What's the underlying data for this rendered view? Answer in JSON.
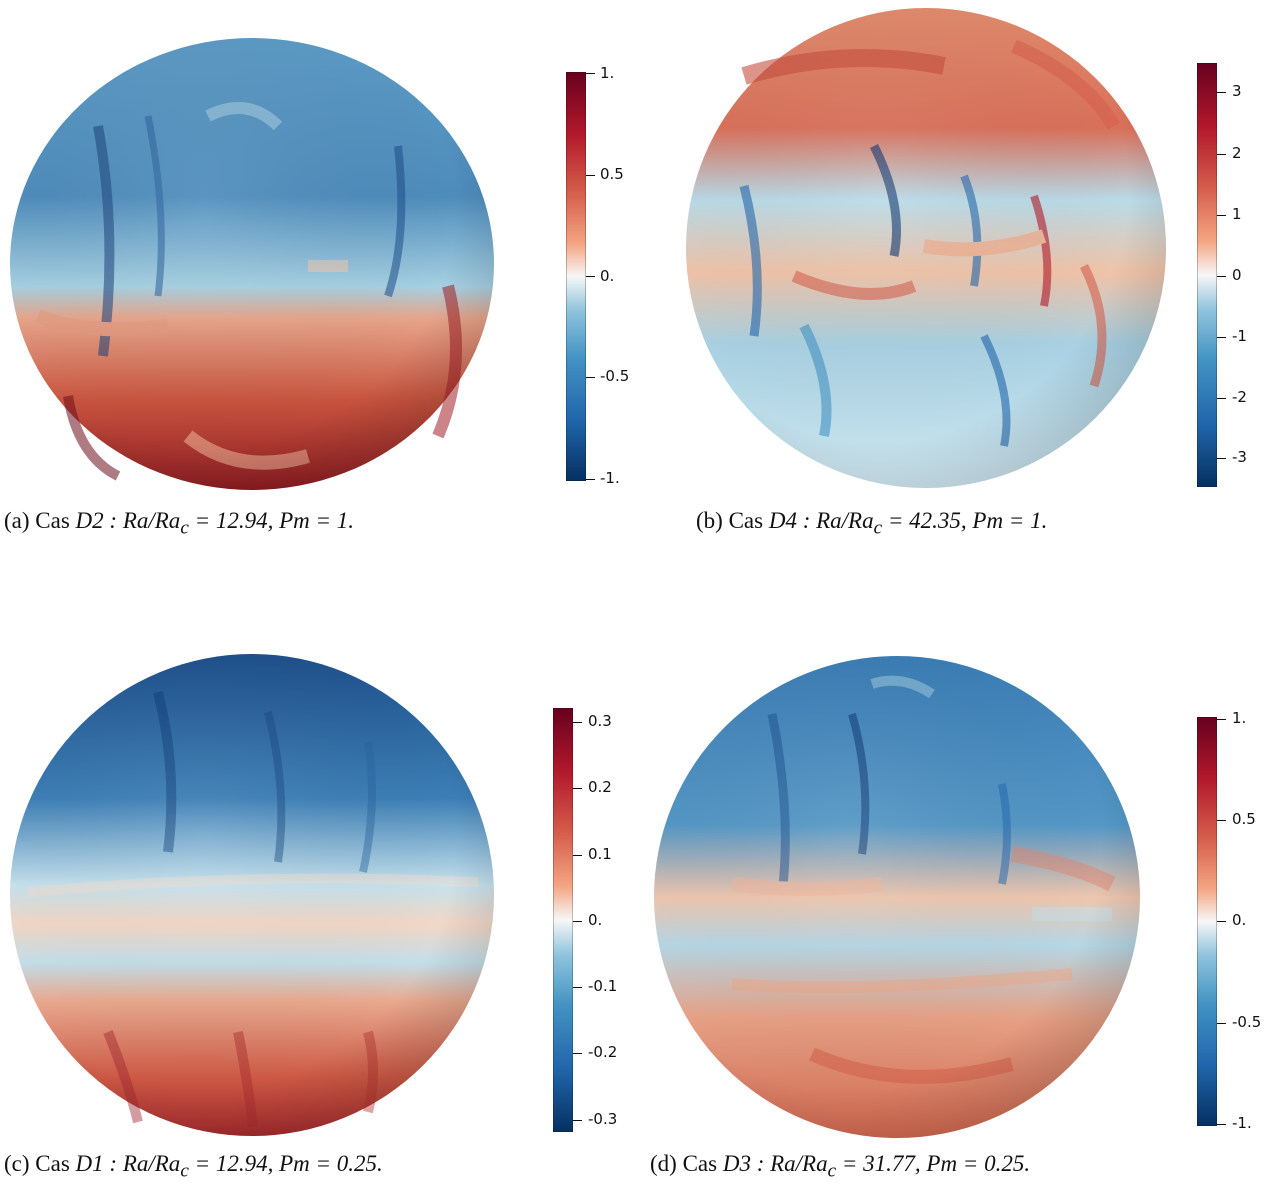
{
  "panels": [
    {
      "caption_label": "(a) Cas ",
      "caption_case": "D2",
      "caption_params": " : Ra/Ra",
      "caption_sub": "c",
      "caption_tail": " = 12.94, Pm = 1.",
      "ticks": [
        "1.",
        "0.5",
        "0.",
        "-0.5",
        "-1."
      ]
    },
    {
      "caption_label": "(b) Cas ",
      "caption_case": "D4",
      "caption_params": " : Ra/Ra",
      "caption_sub": "c",
      "caption_tail": " = 42.35, Pm = 1.",
      "ticks": [
        "3",
        "2",
        "1",
        "0",
        "-1",
        "-2",
        "-3"
      ]
    },
    {
      "caption_label": "(c) Cas ",
      "caption_case": "D1",
      "caption_params": " : Ra/Ra",
      "caption_sub": "c",
      "caption_tail": " = 12.94, Pm = 0.25.",
      "ticks": [
        "0.3",
        "0.2",
        "0.1",
        "0.",
        "-0.1",
        "-0.2",
        "-0.3"
      ]
    },
    {
      "caption_label": "(d) Cas ",
      "caption_case": "D3",
      "caption_params": " : Ra/Ra",
      "caption_sub": "c",
      "caption_tail": " = 31.77, Pm = 0.25.",
      "ticks": [
        "1.",
        "0.5",
        "0.",
        "-0.5",
        "-1."
      ]
    }
  ],
  "colors": {
    "max": "#67001f",
    "high": "#d6604d",
    "mid": "#f7f7f7",
    "low": "#4393c3",
    "min": "#053061"
  }
}
